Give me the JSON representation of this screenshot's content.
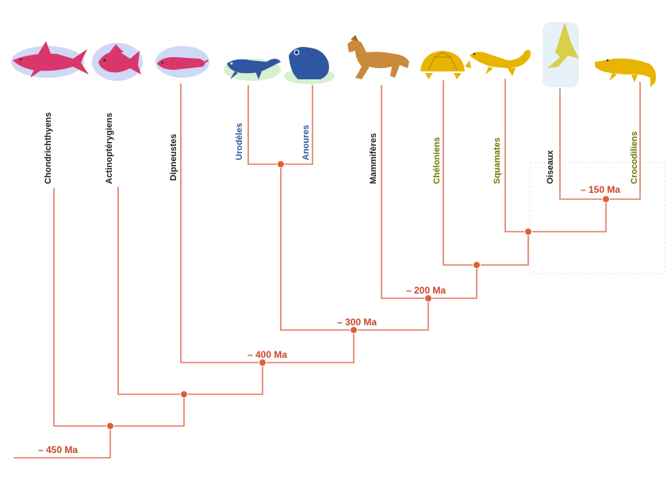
{
  "tree": {
    "line_color": "#e07a5f",
    "node_color": "#e0603c",
    "date_color": "#c8442b",
    "taxa": [
      {
        "name": "Chondrichthyens",
        "group": "fish",
        "icon": "shark-icon",
        "color": "#d9366b",
        "label_color": "#222222"
      },
      {
        "name": "Actinoptérygiens",
        "group": "fish",
        "icon": "ray-finned-fish-icon",
        "color": "#d9366b",
        "label_color": "#222222"
      },
      {
        "name": "Dipneustes",
        "group": "fish",
        "icon": "lungfish-icon",
        "color": "#d9366b",
        "label_color": "#222222"
      },
      {
        "name": "Urodèles",
        "group": "amphibian",
        "icon": "salamander-icon",
        "color": "#2f56a0",
        "label_color": "#2f56a0"
      },
      {
        "name": "Anoures",
        "group": "amphibian",
        "icon": "frog-icon",
        "color": "#2f56a0",
        "label_color": "#2f56a0"
      },
      {
        "name": "Mammifères",
        "group": "mammal",
        "icon": "horse-icon",
        "color": "#c98a3c",
        "label_color": "#222222"
      },
      {
        "name": "Chéloniens",
        "group": "reptile",
        "icon": "turtle-icon",
        "color": "#e8b400",
        "label_color": "#6b7a00"
      },
      {
        "name": "Squamates",
        "group": "reptile",
        "icon": "lizard-icon",
        "color": "#e8b400",
        "label_color": "#6b7a00"
      },
      {
        "name": "Oiseaux",
        "group": "bird",
        "icon": "bird-icon",
        "color": "#d8cf4a",
        "label_color": "#222222"
      },
      {
        "name": "Crocodiliens",
        "group": "reptile",
        "icon": "crocodile-icon",
        "color": "#e8b400",
        "label_color": "#6b7a00"
      }
    ],
    "dates": {
      "d450": "– 450 Ma",
      "d400": "– 400 Ma",
      "d300": "– 300 Ma",
      "d200": "– 200 Ma",
      "d150": "– 150 Ma"
    }
  }
}
